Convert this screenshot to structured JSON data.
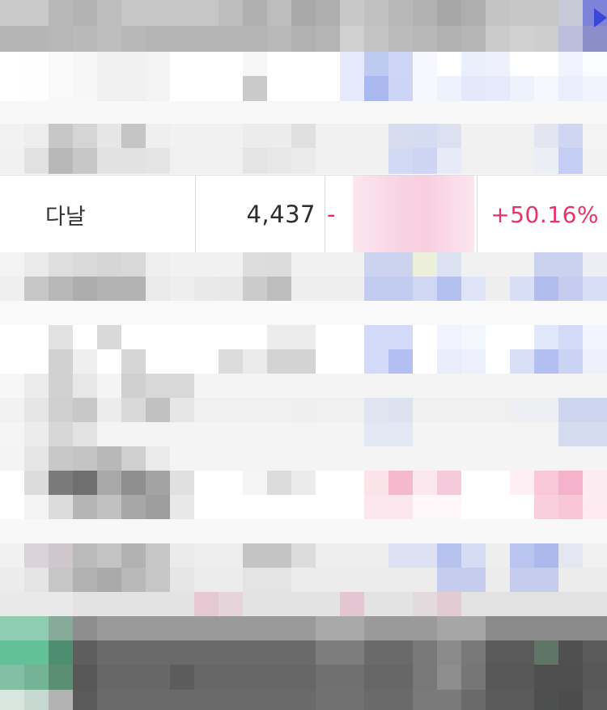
{
  "visible_row": {
    "name": "다날",
    "volume": "4,437",
    "change_prefix": "-",
    "change_rate": "+50.16%"
  },
  "colors": {
    "up": "#e6336a",
    "down_tint": "#b7c6f0",
    "text": "#333333",
    "header_gray": "#a8a8a8",
    "footer_dark": "#5f5f5f",
    "accent_green": "#6cc59b"
  },
  "pixelated_regions": {
    "header_top": [
      [
        "#c9c9c9",
        "#c9c9c9",
        "#b8b8b8",
        "#b3b3b3",
        "#bdbdbd",
        "#c6c6c6",
        "#c6c6c6",
        "#c6c6c6",
        "#c6c6c6",
        "#bdbdbd",
        "#b0b0b0",
        "#bdbdbd",
        "#a8a8a8",
        "#aeaeae",
        "#c8c8c8",
        "#c0c0c0",
        "#b8b8b8",
        "#b1b1b1",
        "#a7a7a7",
        "#aeaeae",
        "#c4c4c4",
        "#c7c7c7",
        "#c7c7c7",
        "#c9c9d7",
        "#7c83d8"
      ],
      [
        "#b5b5b5",
        "#b5b5b5",
        "#b7b7b7",
        "#b9b9b9",
        "#bdbdbd",
        "#b8b8b8",
        "#b4b4b4",
        "#b4b4b4",
        "#b4b4b4",
        "#b4b4b4",
        "#b4b4b4",
        "#b9b9b9",
        "#b1b1b1",
        "#b4b4b4",
        "#d1d1d1",
        "#c4c4c4",
        "#bbbbbb",
        "#b8b8b8",
        "#b2b2b2",
        "#b6b6b6",
        "#cbcbcb",
        "#d1d1d1",
        "#cecece",
        "#bcbfd9",
        "#8a8fc9"
      ]
    ],
    "rows_upper": [
      [
        "#ffffff",
        "#fefefe",
        "#f9f9f9",
        "#f7f7f7",
        "#f1f1f1",
        "#f0f0f0",
        "#f3f3f3",
        "#ffffff",
        "#ffffff",
        "#ffffff",
        "#f6f6f6",
        "#ffffff",
        "#ffffff",
        "#ffffff",
        "#e5e9fa",
        "#bfcaf1",
        "#cdd6f6",
        "#f7f8ff",
        "#ffffff",
        "#ebeffc",
        "#eef1fc",
        "#ffffff",
        "#ffffff",
        "#f1f4ff",
        "#fbfcff"
      ],
      [
        "#ffffff",
        "#fefefe",
        "#f9f9f9",
        "#f7f7f7",
        "#f1f1f1",
        "#f0f0f0",
        "#f3f3f3",
        "#ffffff",
        "#ffffff",
        "#ffffff",
        "#cacaca",
        "#ffffff",
        "#ffffff",
        "#ffffff",
        "#e5e9fa",
        "#a9b8ee",
        "#ccd5f5",
        "#f7f8ff",
        "#eef2fd",
        "#e3e8fb",
        "#e6eafb",
        "#eef2fd",
        "#f6f8ff",
        "#ebeffd",
        "#f2f4fd"
      ],
      [
        "#f8f8f8",
        "#f8f8f8",
        "#f8f8f8",
        "#f8f8f8",
        "#f8f8f8",
        "#f8f8f8",
        "#f8f8f8",
        "#f8f8f8",
        "#f8f8f8",
        "#f8f8f8",
        "#f8f8f8",
        "#f8f8f8",
        "#f8f8f8",
        "#f8f8f8",
        "#f8f8f8",
        "#f8f8f8",
        "#f8f8f8",
        "#f8f8f8",
        "#f8f8f8",
        "#f8f8f8",
        "#f8f8f8",
        "#f8f8f8",
        "#f8f8f8",
        "#f8f8f8",
        "#f8f8f8"
      ],
      [
        "#f2f2f2",
        "#ededed",
        "#c7c7c7",
        "#d5d5d5",
        "#e6e6e6",
        "#c5c5c5",
        "#efefef",
        "#f1f1f1",
        "#f1f1f1",
        "#f1f1f1",
        "#ececec",
        "#ececec",
        "#e0e0e0",
        "#f1f1f1",
        "#f1f1f1",
        "#f1f1f1",
        "#d8dcef",
        "#d5dbf1",
        "#dce0f0",
        "#f1f1f1",
        "#f1f1f1",
        "#f1f1f1",
        "#e3e6f1",
        "#ced6f2",
        "#f3f3f3"
      ],
      [
        "#f1f1f1",
        "#e1e1e1",
        "#b7b7b7",
        "#c7c7c7",
        "#e2e2e2",
        "#e2e2e2",
        "#e5e5e5",
        "#f0f0f0",
        "#f0f0f0",
        "#f0f0f0",
        "#e4e4e4",
        "#e7e7e7",
        "#ebebeb",
        "#f0f0f0",
        "#f0f0f0",
        "#f0f0f0",
        "#d2d9f2",
        "#cdd5f3",
        "#e8ebf7",
        "#f0f0f0",
        "#f0f0f0",
        "#f0f0f0",
        "#eceef6",
        "#c4cdf3",
        "#f2f2f2"
      ]
    ],
    "rows_lower": [
      [
        "#f3f3f3",
        "#eaeaea",
        "#dedede",
        "#dadada",
        "#d6d6d6",
        "#d8d8d8",
        "#efefef",
        "#f1f1f1",
        "#f1f1f1",
        "#f1f1f1",
        "#dddddd",
        "#dcdcdc",
        "#f1f1f1",
        "#f1f1f1",
        "#f1f1f1",
        "#ccd3ee",
        "#ccd3ee",
        "#ecefd9",
        "#dde2f3",
        "#f1f1f1",
        "#f1f1f1",
        "#f1f1f1",
        "#cad2ef",
        "#cad2ef",
        "#eceef3"
      ],
      [
        "#efefef",
        "#c6c6c6",
        "#b7b7b7",
        "#adadad",
        "#b3b3b3",
        "#b3b3b3",
        "#eaeaea",
        "#eeeeee",
        "#e9e9e9",
        "#e8e8e8",
        "#cbcbcb",
        "#bdbdbd",
        "#eeeeee",
        "#eeeeee",
        "#eeeeee",
        "#c2ccf0",
        "#c2ccf0",
        "#cfd7f2",
        "#b4c0ef",
        "#dfe4f6",
        "#eeeeee",
        "#d8def5",
        "#b2bdee",
        "#c4ccf0",
        "#d8def5"
      ],
      [
        "#f9f9f9",
        "#f9f9f9",
        "#f9f9f9",
        "#f9f9f9",
        "#f9f9f9",
        "#f9f9f9",
        "#f9f9f9",
        "#f9f9f9",
        "#f9f9f9",
        "#f9f9f9",
        "#f9f9f9",
        "#f9f9f9",
        "#f9f9f9",
        "#f9f9f9",
        "#f9f9f9",
        "#f9f9f9",
        "#f9f9f9",
        "#f9f9f9",
        "#f9f9f9",
        "#f9f9f9",
        "#f9f9f9",
        "#f9f9f9",
        "#f9f9f9",
        "#f9f9f9",
        "#f9f9f9"
      ],
      [
        "#ffffff",
        "#ffffff",
        "#e1e1e1",
        "#ffffff",
        "#d9d9d9",
        "#ffffff",
        "#ffffff",
        "#ffffff",
        "#ffffff",
        "#ffffff",
        "#ffffff",
        "#ececec",
        "#ececec",
        "#ffffff",
        "#ffffff",
        "#d2daf8",
        "#d2daf8",
        "#ffffff",
        "#f0f3fe",
        "#f4f6fe",
        "#ffffff",
        "#ffffff",
        "#e2e8fb",
        "#d2daf8",
        "#f3f5fe"
      ],
      [
        "#ffffff",
        "#ffffff",
        "#d1d1d1",
        "#efefef",
        "#ffffff",
        "#d6d6d6",
        "#ffffff",
        "#ffffff",
        "#ffffff",
        "#dcdcdc",
        "#ebebeb",
        "#d3d3d3",
        "#d3d3d3",
        "#ffffff",
        "#ffffff",
        "#d2daf8",
        "#b2bff0",
        "#ffffff",
        "#e8ecfb",
        "#edf0fc",
        "#ffffff",
        "#d8dff7",
        "#b2bff0",
        "#cad3f4",
        "#eef1fc"
      ],
      [
        "#f7f7f7",
        "#ececec",
        "#d1d1d1",
        "#e7e7e7",
        "#f4f4f4",
        "#d0d0d0",
        "#d8d8d8",
        "#d8d8d8",
        "#f4f4f4",
        "#f4f4f4",
        "#f4f4f4",
        "#f4f4f4",
        "#f4f4f4",
        "#f4f4f4",
        "#f4f4f4",
        "#f4f4f4",
        "#f4f4f4",
        "#f4f4f4",
        "#f4f4f4",
        "#f4f4f4",
        "#f4f4f4",
        "#f4f4f4",
        "#f4f4f4",
        "#f4f4f4",
        "#f4f4f4"
      ],
      [
        "#f2f2f2",
        "#e6e6e6",
        "#cfcfcf",
        "#c8c8c8",
        "#ececec",
        "#d9d9d9",
        "#c1c1c1",
        "#e6e6e6",
        "#f0f0f0",
        "#f0f0f0",
        "#f0f0f0",
        "#f0f0f0",
        "#efefef",
        "#f0f0f0",
        "#f0f0f0",
        "#e1e5f2",
        "#dde2f1",
        "#f0f0f0",
        "#f0f0f0",
        "#f0f0f0",
        "#f0f0f0",
        "#eeeff2",
        "#eeeff2",
        "#cdd5ee",
        "#cdd5ee"
      ],
      [
        "#f5f5f5",
        "#ececec",
        "#d7d7d7",
        "#e3e3e3",
        "#f4f4f4",
        "#f4f4f4",
        "#f4f4f4",
        "#f4f4f4",
        "#f4f4f4",
        "#f4f4f4",
        "#f4f4f4",
        "#f4f4f4",
        "#f4f4f4",
        "#f4f4f4",
        "#f4f4f4",
        "#e3e7f3",
        "#e3e7f3",
        "#f4f4f4",
        "#f4f4f4",
        "#f4f4f4",
        "#f4f4f4",
        "#f4f4f4",
        "#f4f4f4",
        "#d5dbf0",
        "#d5dbf0"
      ],
      [
        "#f4f4f4",
        "#e6e6e6",
        "#c8c8c8",
        "#c4c4c4",
        "#b8b8b8",
        "#cfcfcf",
        "#eaeaea",
        "#f4f4f4",
        "#f4f4f4",
        "#f4f4f4",
        "#f4f4f4",
        "#f4f4f4",
        "#f4f4f4",
        "#f4f4f4",
        "#f4f4f4",
        "#f4f4f4",
        "#f4f4f4",
        "#f4f4f4",
        "#f4f4f4",
        "#f4f4f4",
        "#f4f4f4",
        "#f4f4f4",
        "#f4f4f4",
        "#f4f4f4",
        "#f4f4f4"
      ],
      [
        "#ffffff",
        "#dcdcdc",
        "#7a7a7a",
        "#6f6f6f",
        "#a8a8a8",
        "#8f8f8f",
        "#a3a3a3",
        "#e0e0e0",
        "#ffffff",
        "#ffffff",
        "#f5f5f5",
        "#dcdcdc",
        "#ebebeb",
        "#ffffff",
        "#ffffff",
        "#fce3ea",
        "#f6b8cc",
        "#fbe7ee",
        "#f7cadb",
        "#ffffff",
        "#ffffff",
        "#fdeff4",
        "#f8c7d8",
        "#f5b3cb",
        "#fcebf1"
      ],
      [
        "#ffffff",
        "#f4f4f4",
        "#dcdcdc",
        "#b5b5b5",
        "#c1c1c1",
        "#a7a7a7",
        "#9e9e9e",
        "#e8e8e8",
        "#ffffff",
        "#ffffff",
        "#ffffff",
        "#ffffff",
        "#ffffff",
        "#ffffff",
        "#ffffff",
        "#fce7ee",
        "#fce7ee",
        "#fff6f9",
        "#fff6f9",
        "#ffffff",
        "#ffffff",
        "#ffffff",
        "#f9cfde",
        "#f8c6d7",
        "#fde9f0"
      ],
      [
        "#f8f8f8",
        "#f8f8f8",
        "#f8f8f8",
        "#f8f8f8",
        "#f8f8f8",
        "#f8f8f8",
        "#f8f8f8",
        "#f8f8f8",
        "#f8f8f8",
        "#f8f8f8",
        "#f8f8f8",
        "#f8f8f8",
        "#f8f8f8",
        "#f8f8f8",
        "#f8f8f8",
        "#f8f8f8",
        "#f8f8f8",
        "#f8f8f8",
        "#f8f8f8",
        "#f8f8f8",
        "#f8f8f8",
        "#f8f8f8",
        "#f8f8f8",
        "#f8f8f8",
        "#f8f8f8"
      ],
      [
        "#f1f1f1",
        "#dcd3d8",
        "#d0c7cc",
        "#bababa",
        "#c4c4c4",
        "#b2b2b2",
        "#c6c6c6",
        "#eaeaea",
        "#eeeeee",
        "#eeeeee",
        "#c4c4c4",
        "#c4c4c4",
        "#dcdcdc",
        "#eeeeee",
        "#eeeeee",
        "#eeeeee",
        "#dde1f1",
        "#dde1f1",
        "#b7c3ee",
        "#d6dcf4",
        "#eeeeee",
        "#b9c4ef",
        "#adb9ec",
        "#e4e7f2",
        "#f0f0f0"
      ],
      [
        "#ececec",
        "#e4e4e4",
        "#c6c6c6",
        "#b1b1b1",
        "#aaaaaa",
        "#b9b9b9",
        "#c6c6c6",
        "#e6e6e6",
        "#ececec",
        "#ececec",
        "#e4e4e4",
        "#e4e4e4",
        "#ececec",
        "#ececec",
        "#ececec",
        "#ececec",
        "#ececec",
        "#ececec",
        "#c6ccee",
        "#c6ccee",
        "#ececec",
        "#c6ccee",
        "#c6ccee",
        "#ececec",
        "#ececec"
      ],
      [
        "#e9e9e9",
        "#e9e9e9",
        "#e9e9e9",
        "#e3e3e3",
        "#e3e3e3",
        "#e3e3e3",
        "#e3e3e3",
        "#e3e3e3",
        "#e5c8d2",
        "#e5d4da",
        "#e3e3e3",
        "#e3e3e3",
        "#e3e3e3",
        "#e3e3e3",
        "#e3c6d1",
        "#e3e3e3",
        "#e3e3e3",
        "#e3dadd",
        "#e3cbd4",
        "#e3e3e3",
        "#e3e3e3",
        "#e3e3e3",
        "#e3e3e3",
        "#e3e3e3",
        "#e3e3e3"
      ]
    ],
    "footer": [
      [
        "#8fcdb3",
        "#8fcdb3",
        "#86ab9a",
        "#8e8e8e",
        "#9a9a9a",
        "#9a9a9a",
        "#9a9a9a",
        "#9a9a9a",
        "#9a9a9a",
        "#9a9a9a",
        "#9a9a9a",
        "#9a9a9a",
        "#9a9a9a",
        "#a9a9a9",
        "#a9a9a9",
        "#9a9a9a",
        "#9a9a9a",
        "#9a9a9a",
        "#a6a6a6",
        "#a6a6a6",
        "#8a8a8a",
        "#8a8a8a",
        "#8a8a8a",
        "#8a8a8a",
        "#8a8a8a"
      ],
      [
        "#63c197",
        "#63c197",
        "#4e8e70",
        "#5e5e5e",
        "#6a6a6a",
        "#6a6a6a",
        "#6a6a6a",
        "#6a6a6a",
        "#6a6a6a",
        "#6a6a6a",
        "#6a6a6a",
        "#6a6a6a",
        "#6a6a6a",
        "#7d7d7d",
        "#7d7d7d",
        "#6a6a6a",
        "#6a6a6a",
        "#787878",
        "#8a8a8a",
        "#787878",
        "#5a5a5a",
        "#5a5a5a",
        "#617468",
        "#505050",
        "#5a5a5a"
      ],
      [
        "#84bea4",
        "#75b396",
        "#5b8f74",
        "#575757",
        "#676767",
        "#676767",
        "#676767",
        "#5c5c5c",
        "#676767",
        "#676767",
        "#676767",
        "#676767",
        "#676767",
        "#707070",
        "#707070",
        "#676767",
        "#676767",
        "#787878",
        "#8d8d8d",
        "#767676",
        "#585858",
        "#585858",
        "#4f4f4f",
        "#4f4f4f",
        "#585858"
      ],
      [
        "#d8e6df",
        "#c6d8cf",
        "#b3b3b3",
        "#5a5a5a",
        "#6a6a6a",
        "#6a6a6a",
        "#6a6a6a",
        "#6a6a6a",
        "#6a6a6a",
        "#6a6a6a",
        "#6a6a6a",
        "#6a6a6a",
        "#6a6a6a",
        "#717171",
        "#717171",
        "#6a6a6a",
        "#6a6a6a",
        "#7a7a7a",
        "#7a7a7a",
        "#6a6a6a",
        "#5b5b5b",
        "#5b5b5b",
        "#4c4f4d",
        "#4c4c4c",
        "#5b5b5b"
      ]
    ]
  }
}
